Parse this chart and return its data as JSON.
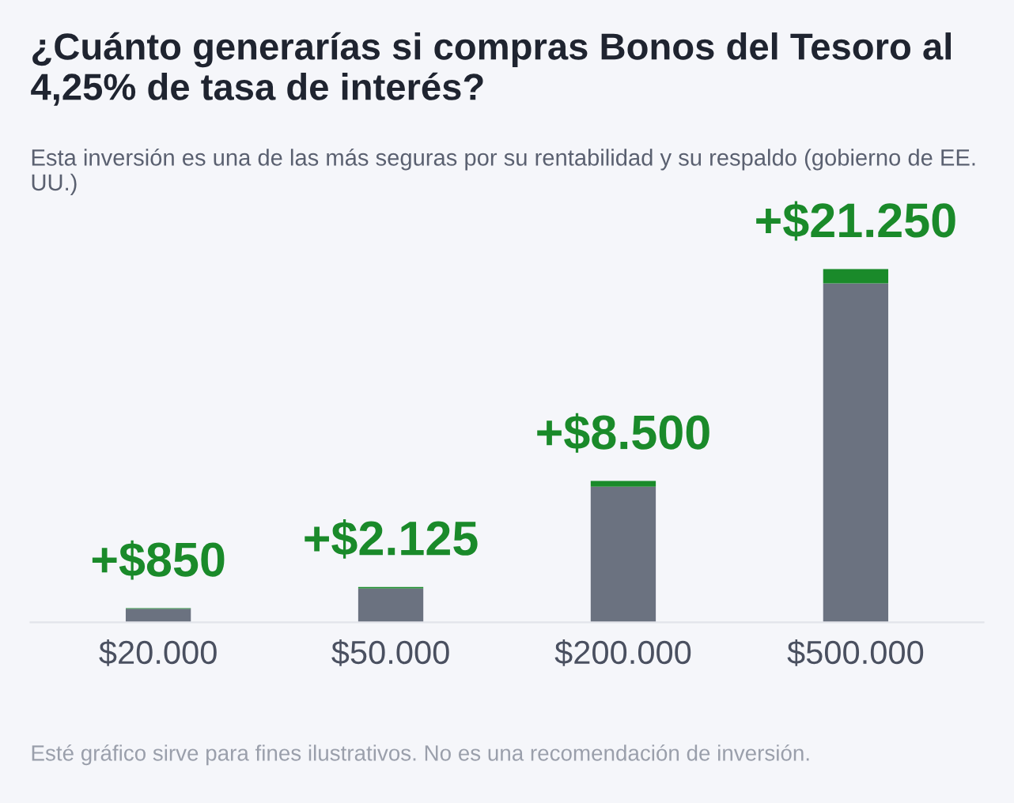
{
  "chart_data": {
    "type": "bar",
    "title": "¿Cuánto generarías si compras Bonos del Tesoro al 4,25% de tasa de interés?",
    "subtitle": "Esta inversión es una de las más seguras por su rentabilidad y su respaldo (gobierno de EE. UU.)",
    "annotations": [
      "Esté gráfico sirve para fines ilustrativos. No es una recomendación de inversión."
    ],
    "categories": [
      "$20.000",
      "$50.000",
      "$200.000",
      "$500.000"
    ],
    "stacked": true,
    "grid": false,
    "legend": false,
    "series": [
      {
        "color": "#6b7280",
        "values": [
          20000,
          50000,
          200000,
          500000
        ]
      },
      {
        "color": "#1a8a2a",
        "values": [
          850,
          2125,
          8500,
          21250
        ],
        "value_labels": [
          "+$850",
          "+$2.125",
          "+$8.500",
          "+$21.250"
        ]
      }
    ]
  }
}
